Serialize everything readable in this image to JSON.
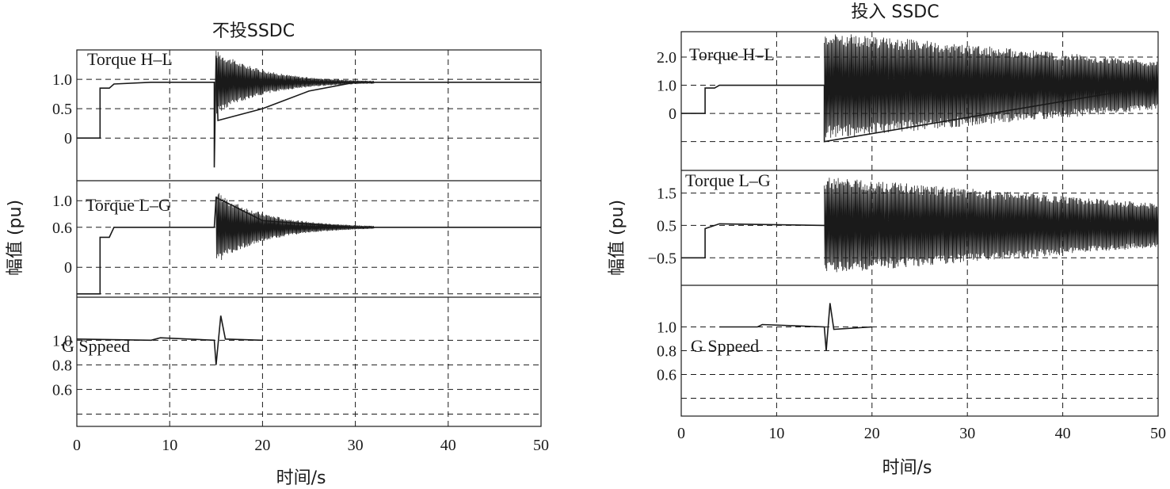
{
  "colors": {
    "ink": "#1a1a1a",
    "background": "#ffffff"
  },
  "chart_data": [
    {
      "type": "line",
      "title": "不投SSDC",
      "xlabel": "时间/s",
      "ylabel": "幅值 (pu)",
      "xlim": [
        0,
        50
      ],
      "xticks": [
        "0",
        "10",
        "20",
        "30",
        "40",
        "50"
      ],
      "grid": "dashed",
      "panels": [
        {
          "label": "Torque H–L",
          "yticks": [
            "1.0",
            "0.5",
            "0"
          ],
          "ytick_values": [
            1.0,
            0.5,
            0
          ],
          "ylim": [
            -0.55,
            1.5
          ],
          "series_points": [
            [
              0,
              0
            ],
            [
              2.5,
              0
            ],
            [
              2.5,
              0.85
            ],
            [
              3.5,
              0.85
            ],
            [
              4,
              0.92
            ],
            [
              8,
              0.95
            ],
            [
              14.8,
              0.95
            ],
            [
              14.8,
              -0.5
            ],
            [
              15,
              1.4
            ],
            [
              15.2,
              0.3
            ],
            [
              20,
              0.5
            ],
            [
              25,
              0.8
            ],
            [
              30,
              0.95
            ],
            [
              50,
              0.95
            ]
          ],
          "oscillation": {
            "start": 15,
            "end": 32,
            "center": 0.95,
            "amplitude": 0.55,
            "decay": "exponential"
          }
        },
        {
          "label": "Torque L–G",
          "yticks": [
            "1.0",
            "0.6",
            "0"
          ],
          "ytick_values": [
            1.0,
            0.6,
            0
          ],
          "ylim": [
            -0.45,
            1.3
          ],
          "series_points": [
            [
              0,
              -0.4
            ],
            [
              2.5,
              -0.4
            ],
            [
              2.5,
              0.45
            ],
            [
              3.5,
              0.45
            ],
            [
              4,
              0.6
            ],
            [
              14.8,
              0.6
            ],
            [
              15,
              1.05
            ],
            [
              20,
              0.7
            ],
            [
              30,
              0.6
            ],
            [
              50,
              0.6
            ]
          ],
          "oscillation": {
            "start": 15,
            "end": 32,
            "center": 0.6,
            "amplitude": 0.55,
            "decay": "exponential"
          }
        },
        {
          "label": "G Sppeed",
          "yticks": [
            "1.0",
            "0.8",
            "0.6"
          ],
          "ytick_values": [
            1.0,
            0.8,
            0.6
          ],
          "ylim": [
            0.3,
            1.35
          ],
          "series_points": [
            [
              0,
              1.01
            ],
            [
              8,
              1.0
            ],
            [
              9,
              1.02
            ],
            [
              14.8,
              1.0
            ],
            [
              15,
              0.8
            ],
            [
              15.5,
              1.2
            ],
            [
              16,
              1.01
            ],
            [
              20,
              1.0
            ]
          ]
        }
      ]
    },
    {
      "type": "line",
      "title": "投入 SSDC",
      "xlabel": "时间/s",
      "ylabel": "幅值 (pu)",
      "xlim": [
        0,
        50
      ],
      "xticks": [
        "0",
        "10",
        "20",
        "30",
        "40",
        "50"
      ],
      "grid": "dashed",
      "panels": [
        {
          "label": "Torque H–L",
          "yticks": [
            "2.0",
            "1.0",
            "0"
          ],
          "ytick_values": [
            2.0,
            1.0,
            0
          ],
          "ylim": [
            -1.6,
            2.9
          ],
          "series_points": [
            [
              0,
              0
            ],
            [
              2.5,
              0
            ],
            [
              2.5,
              0.9
            ],
            [
              3.5,
              0.9
            ],
            [
              4,
              1.0
            ],
            [
              15,
              1.0
            ],
            [
              15,
              -1.0
            ],
            [
              50,
              1.0
            ]
          ],
          "oscillation": {
            "start": 15,
            "end": 50,
            "center": 1.0,
            "amplitude": 1.9,
            "decay": "slow"
          }
        },
        {
          "label": "Torque L–G",
          "yticks": [
            "1.5",
            "0.5",
            "−0.5"
          ],
          "ytick_values": [
            1.5,
            0.5,
            -0.5
          ],
          "ylim": [
            -1.35,
            2.2
          ],
          "series_points": [
            [
              0,
              -0.5
            ],
            [
              2.5,
              -0.5
            ],
            [
              2.5,
              0.4
            ],
            [
              4,
              0.55
            ],
            [
              15,
              0.5
            ],
            [
              50,
              0.5
            ]
          ],
          "oscillation": {
            "start": 15,
            "end": 50,
            "center": 0.5,
            "amplitude": 1.5,
            "decay": "slow"
          }
        },
        {
          "label": "G Sppeed",
          "yticks": [
            "1.0",
            "0.8",
            "0.6"
          ],
          "ytick_values": [
            1.0,
            0.8,
            0.6
          ],
          "ylim": [
            0.25,
            1.35
          ],
          "series_points": [
            [
              4,
              1.0
            ],
            [
              8,
              1.0
            ],
            [
              8.5,
              1.02
            ],
            [
              15,
              1.0
            ],
            [
              15.2,
              0.8
            ],
            [
              15.6,
              1.2
            ],
            [
              16,
              0.98
            ],
            [
              20,
              1.0
            ]
          ]
        }
      ]
    }
  ]
}
